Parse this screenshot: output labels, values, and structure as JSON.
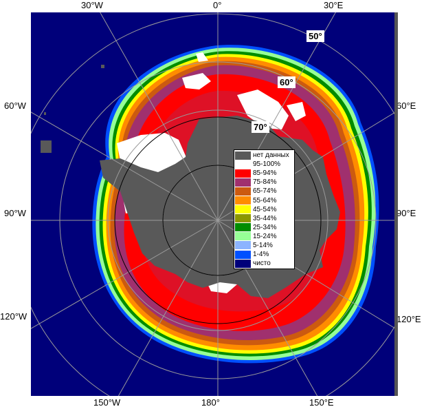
{
  "map": {
    "longitude_labels": {
      "top_w30": "30°W",
      "top_0": "0°",
      "top_e30": "30°E",
      "left_w60": "60°W",
      "left_w90": "90°W",
      "left_w120": "120°W",
      "right_e60": "60°E",
      "right_e90": "90°E",
      "right_e120": "120°E",
      "bottom_w150": "150°W",
      "bottom_180": "180°",
      "bottom_e150": "150°E"
    },
    "latitude_labels": {
      "lat50": "50°",
      "lat60": "60°",
      "lat70": "70°"
    },
    "colors": {
      "ocean": "#00007a",
      "land_no_data": "#595959",
      "graticule": "#9a9a9a",
      "circle": "#000000"
    }
  },
  "legend": {
    "items": [
      {
        "label": "нет данных",
        "color": "#595959"
      },
      {
        "label": "95-100%",
        "color": "#ffffff"
      },
      {
        "label": "85-94%",
        "color": "#ff0000"
      },
      {
        "label": "75-84%",
        "color": "#a0306e"
      },
      {
        "label": "65-74%",
        "color": "#cc5a10"
      },
      {
        "label": "55-64%",
        "color": "#ff8c00"
      },
      {
        "label": "45-54%",
        "color": "#ffff00"
      },
      {
        "label": "35-44%",
        "color": "#8c9600"
      },
      {
        "label": "25-34%",
        "color": "#008c00"
      },
      {
        "label": "15-24%",
        "color": "#96ff96"
      },
      {
        "label": "5-14%",
        "color": "#8cb4ff"
      },
      {
        "label": "1-4%",
        "color": "#0050ff"
      },
      {
        "label": "чисто",
        "color": "#00007a"
      }
    ]
  }
}
